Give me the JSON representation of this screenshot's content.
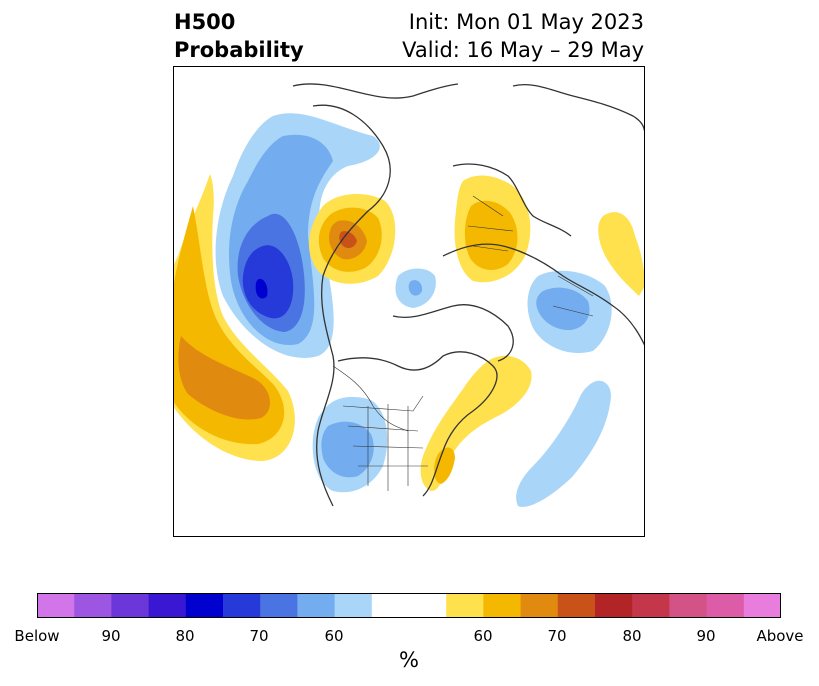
{
  "title": {
    "line1": "H500",
    "line2": "Probability",
    "init": "Init: Mon 01 May 2023",
    "valid": "Valid: 16 May – 29 May"
  },
  "map": {
    "projection": "polar-stereographic",
    "region": "North America / Northern Hemisphere",
    "below_color": "#a9d6f8",
    "above_color": "#ffe04d"
  },
  "colorbar": {
    "unit": "%",
    "colors": [
      "#d275e8",
      "#9d56e1",
      "#6b37d8",
      "#3a17d3",
      "#0000cf",
      "#2639d9",
      "#4b74e3",
      "#73adf0",
      "#a9d6f8",
      "#ffffff",
      "#ffe04d",
      "#f4b800",
      "#e08a10",
      "#c85218",
      "#b22426",
      "#c4374b",
      "#d35387",
      "#dc5ca8",
      "#e87ddd"
    ],
    "ticks": [
      "Below",
      "90",
      "80",
      "70",
      "60",
      "60",
      "70",
      "80",
      "90",
      "Above"
    ]
  }
}
